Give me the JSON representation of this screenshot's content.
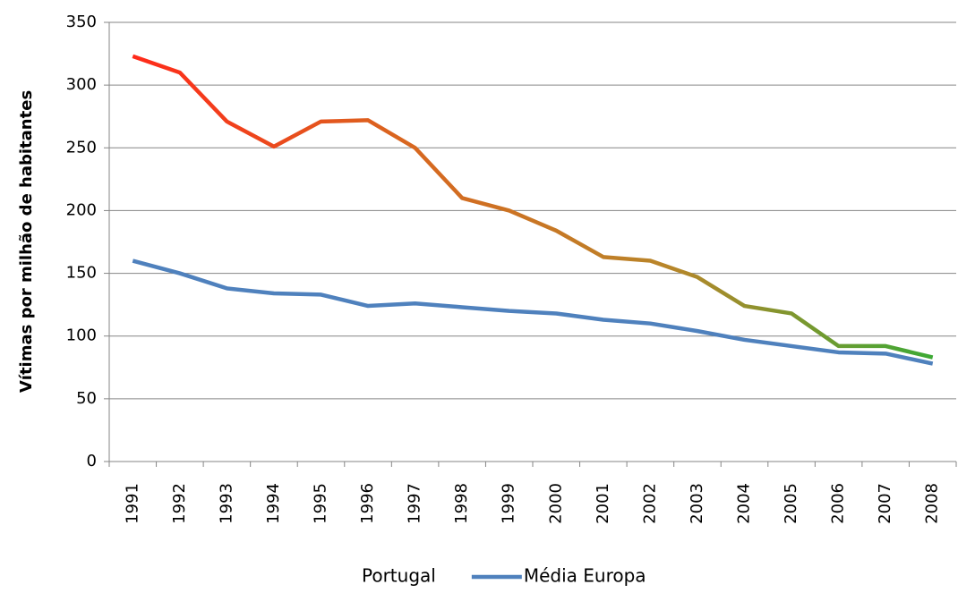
{
  "chart_data": {
    "type": "line",
    "ylabel": "Vítimas por milhão de habitantes",
    "categories": [
      "1991",
      "1992",
      "1993",
      "1994",
      "1995",
      "1996",
      "1997",
      "1998",
      "1999",
      "2000",
      "2001",
      "2002",
      "2003",
      "2004",
      "2005",
      "2006",
      "2007",
      "2008"
    ],
    "series": [
      {
        "name": "Portugal",
        "gradient": [
          "#ff2a1a",
          "#d9661f",
          "#b8862a",
          "#3aaa35"
        ],
        "values": [
          323,
          310,
          271,
          251,
          271,
          272,
          250,
          210,
          200,
          184,
          163,
          160,
          147,
          124,
          118,
          92,
          92,
          83
        ]
      },
      {
        "name": "Média Europa",
        "color": "#4f81bd",
        "values": [
          160,
          150,
          138,
          134,
          133,
          124,
          126,
          123,
          120,
          118,
          113,
          110,
          104,
          97,
          92,
          87,
          86,
          78
        ]
      }
    ],
    "ylim": [
      0,
      350
    ],
    "yticks": [
      0,
      50,
      100,
      150,
      200,
      250,
      300,
      350
    ],
    "grid": true,
    "legend": "bottom"
  }
}
